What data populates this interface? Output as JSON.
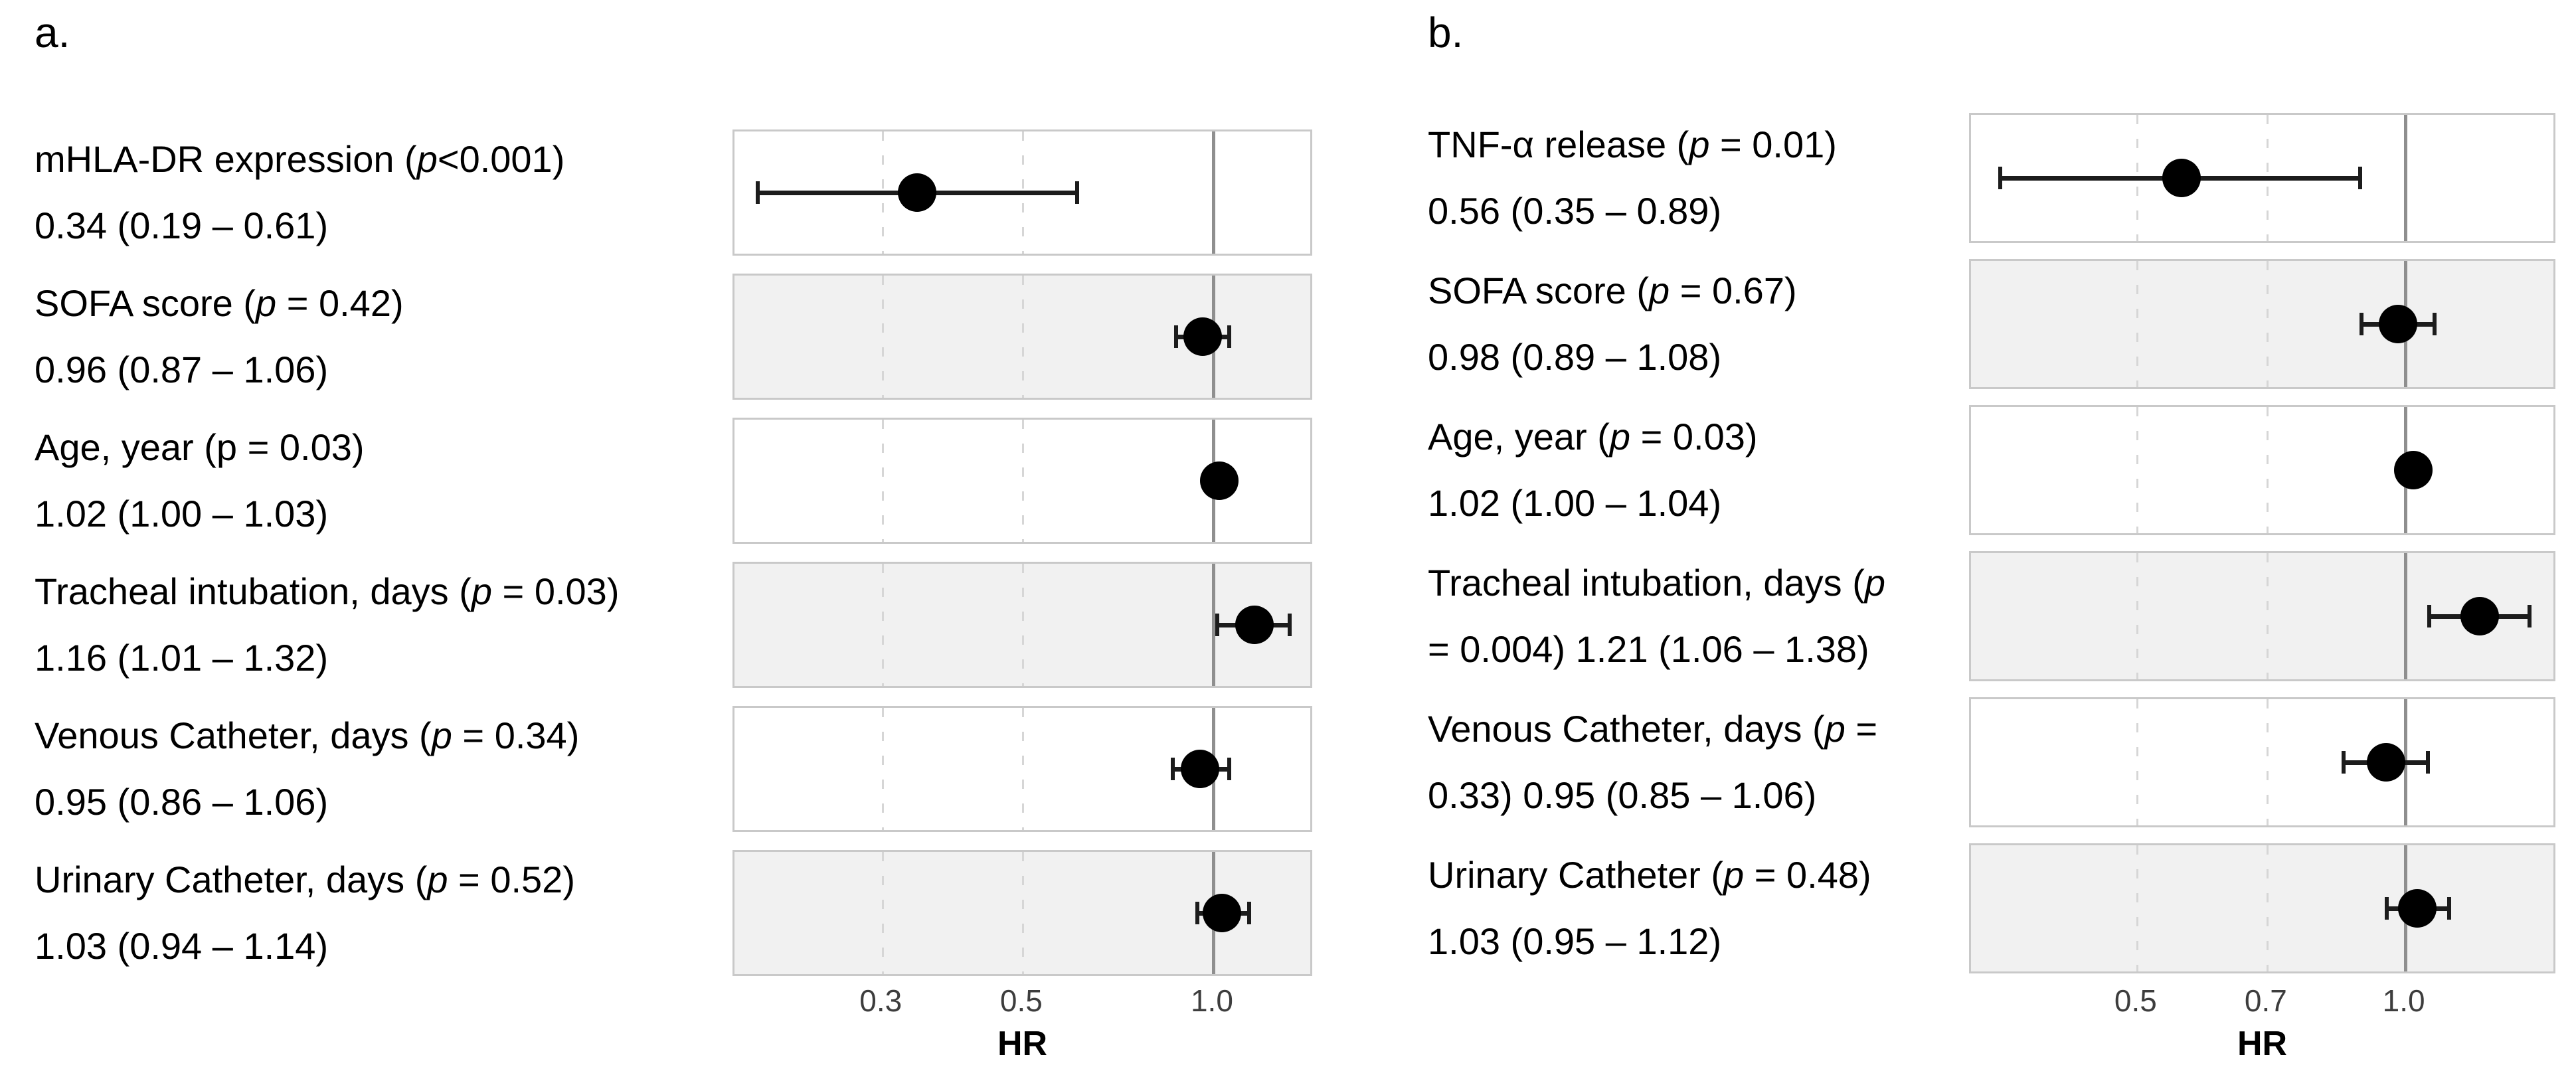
{
  "figure": {
    "background": "#ffffff",
    "panels": [
      {
        "id": "a",
        "panel_label": "a.",
        "x_axis_title": "HR",
        "tick_labels": [
          "0.3",
          "0.5",
          "1.0"
        ],
        "rows": [
          {
            "lines": [
              [
                {
                  "t": "mHLA-DR expression (",
                  "i": false
                },
                {
                  "t": "p",
                  "i": true
                },
                {
                  "t": "<0.001)",
                  "i": false
                }
              ],
              [
                {
                  "t": "0.34 (0.19 – 0.61)",
                  "i": false
                }
              ]
            ]
          },
          {
            "lines": [
              [
                {
                  "t": "SOFA score (",
                  "i": false
                },
                {
                  "t": "p",
                  "i": true
                },
                {
                  "t": " = 0.42)",
                  "i": false
                }
              ],
              [
                {
                  "t": "0.96 (0.87 – 1.06)",
                  "i": false
                }
              ]
            ]
          },
          {
            "lines": [
              [
                {
                  "t": "Age, year (p = 0.03)",
                  "i": false
                }
              ],
              [
                {
                  "t": "1.02 (1.00 – 1.03)",
                  "i": false
                }
              ]
            ]
          },
          {
            "lines": [
              [
                {
                  "t": "Tracheal intubation, days (",
                  "i": false
                },
                {
                  "t": "p",
                  "i": true
                },
                {
                  "t": " = 0.03)",
                  "i": false
                }
              ],
              [
                {
                  "t": "1.16 (1.01 – 1.32)",
                  "i": false
                }
              ]
            ]
          },
          {
            "lines": [
              [
                {
                  "t": "Venous Catheter, days (",
                  "i": false
                },
                {
                  "t": "p",
                  "i": true
                },
                {
                  "t": " = 0.34)",
                  "i": false
                }
              ],
              [
                {
                  "t": "0.95 (0.86 – 1.06)",
                  "i": false
                }
              ]
            ]
          },
          {
            "lines": [
              [
                {
                  "t": "Urinary Catheter, days (",
                  "i": false
                },
                {
                  "t": "p",
                  "i": true
                },
                {
                  "t": " = 0.52)",
                  "i": false
                }
              ],
              [
                {
                  "t": "1.03 (0.94 – 1.14)",
                  "i": false
                }
              ]
            ]
          }
        ]
      },
      {
        "id": "b",
        "panel_label": "b.",
        "x_axis_title": "HR",
        "tick_labels": [
          "0.5",
          "0.7",
          "1.0"
        ],
        "rows": [
          {
            "lines": [
              [
                {
                  "t": "TNF-α release (",
                  "i": false
                },
                {
                  "t": "p",
                  "i": true
                },
                {
                  "t": " = 0.01)",
                  "i": false
                }
              ],
              [
                {
                  "t": "0.56 (0.35 – 0.89)",
                  "i": false
                }
              ]
            ]
          },
          {
            "lines": [
              [
                {
                  "t": "SOFA score (",
                  "i": false
                },
                {
                  "t": "p",
                  "i": true
                },
                {
                  "t": " = 0.67)",
                  "i": false
                }
              ],
              [
                {
                  "t": "0.98 (0.89 – 1.08)",
                  "i": false
                }
              ]
            ]
          },
          {
            "lines": [
              [
                {
                  "t": "Age, year (",
                  "i": false
                },
                {
                  "t": "p",
                  "i": true
                },
                {
                  "t": " = 0.03)",
                  "i": false
                }
              ],
              [
                {
                  "t": "1.02 (1.00 – 1.04)",
                  "i": false
                }
              ]
            ]
          },
          {
            "lines": [
              [
                {
                  "t": "Tracheal intubation, days (",
                  "i": false
                },
                {
                  "t": "p",
                  "i": true
                }
              ],
              [
                {
                  "t": "= 0.004) 1.21 (1.06 – 1.38)",
                  "i": false
                }
              ]
            ]
          },
          {
            "lines": [
              [
                {
                  "t": "Venous Catheter, days (",
                  "i": false
                },
                {
                  "t": "p",
                  "i": true
                },
                {
                  "t": " =",
                  "i": false
                }
              ],
              [
                {
                  "t": "0.33) 0.95 (0.85 – 1.06)",
                  "i": false
                }
              ]
            ]
          },
          {
            "lines": [
              [
                {
                  "t": "Urinary Catheter (",
                  "i": false
                },
                {
                  "t": "p",
                  "i": true
                },
                {
                  "t": " = 0.48)",
                  "i": false
                }
              ],
              [
                {
                  "t": "1.03 (0.95 – 1.12)",
                  "i": false
                }
              ]
            ]
          }
        ]
      }
    ]
  },
  "chart_data": [
    {
      "type": "scatter",
      "subtype": "forest-plot",
      "panel": "a",
      "title": "",
      "xlabel": "HR",
      "ylabel": "",
      "x_scale": "log",
      "x_ticks": [
        0.3,
        0.5,
        1.0
      ],
      "xlim": [
        0.175,
        1.44
      ],
      "reference_line_x": 1.0,
      "grid": "dashed-vertical-at-ticks",
      "legend": "none",
      "categories": [
        "mHLA-DR expression",
        "SOFA score",
        "Age, year",
        "Tracheal intubation, days",
        "Venous Catheter, days",
        "Urinary Catheter, days"
      ],
      "p_values": [
        "<0.001",
        "0.42",
        "0.03",
        "0.03",
        "0.34",
        "0.52"
      ],
      "hr": [
        0.34,
        0.96,
        1.02,
        1.16,
        0.95,
        1.03
      ],
      "ci_low": [
        0.19,
        0.87,
        1.0,
        1.01,
        0.86,
        0.94
      ],
      "ci_high": [
        0.61,
        1.06,
        1.03,
        1.32,
        1.06,
        1.14
      ]
    },
    {
      "type": "scatter",
      "subtype": "forest-plot",
      "panel": "b",
      "title": "",
      "xlabel": "HR",
      "ylabel": "",
      "x_scale": "log",
      "x_ticks": [
        0.5,
        0.7,
        1.0
      ],
      "xlim": [
        0.325,
        1.48
      ],
      "reference_line_x": 1.0,
      "grid": "dashed-vertical-at-ticks",
      "legend": "none",
      "categories": [
        "TNF-α release",
        "SOFA score",
        "Age, year",
        "Tracheal intubation, days",
        "Venous Catheter, days",
        "Urinary Catheter"
      ],
      "p_values": [
        "0.01",
        "0.67",
        "0.03",
        "0.004",
        "0.33",
        "0.48"
      ],
      "hr": [
        0.56,
        0.98,
        1.02,
        1.21,
        0.95,
        1.03
      ],
      "ci_low": [
        0.35,
        0.89,
        1.0,
        1.06,
        0.85,
        0.95
      ],
      "ci_high": [
        0.89,
        1.08,
        1.04,
        1.38,
        1.06,
        1.12
      ]
    }
  ],
  "colors": {
    "background": "#ffffff",
    "band_shaded": "#f1f1f1",
    "band_border": "#c9c9c9",
    "dashed_gridline": "#d6d6d6",
    "reference_line": "#8f8f8f",
    "marker": "#000000",
    "tick_text": "#3d3d3d",
    "label_text": "#000000"
  }
}
